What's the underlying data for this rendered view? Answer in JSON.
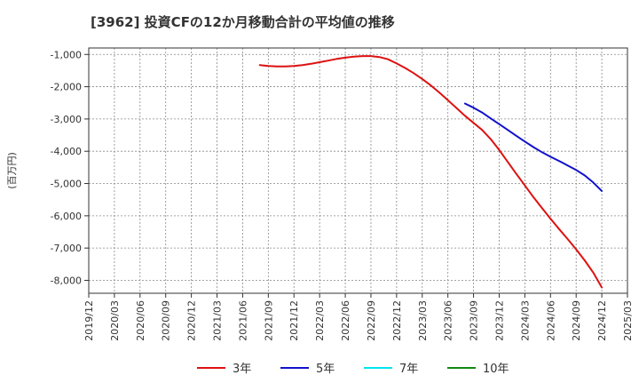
{
  "chart_data": {
    "type": "line",
    "title": "[3962]  投資CFの12か月移動合計の平均値の推移",
    "ylabel": "(百万円)",
    "xlabel": "",
    "ylim": [
      -8400,
      -800
    ],
    "y_ticks": [
      -1000,
      -2000,
      -3000,
      -4000,
      -5000,
      -6000,
      -7000,
      -8000
    ],
    "y_tick_labels": [
      "-1,000",
      "-2,000",
      "-3,000",
      "-4,000",
      "-5,000",
      "-6,000",
      "-7,000",
      "-8,000"
    ],
    "x_tick_labels": [
      "2019/12",
      "2020/03",
      "2020/06",
      "2020/09",
      "2020/12",
      "2021/03",
      "2021/06",
      "2021/09",
      "2021/12",
      "2022/03",
      "2022/06",
      "2022/09",
      "2022/12",
      "2023/03",
      "2023/06",
      "2023/09",
      "2023/12",
      "2024/03",
      "2024/06",
      "2024/09",
      "2024/12",
      "2025/03"
    ],
    "grid": true,
    "legend_position": "bottom",
    "series": [
      {
        "name": "3年",
        "color": "#dd1111",
        "x": [
          "2021/08",
          "2021/09",
          "2021/10",
          "2021/11",
          "2021/12",
          "2022/01",
          "2022/02",
          "2022/03",
          "2022/04",
          "2022/05",
          "2022/06",
          "2022/07",
          "2022/08",
          "2022/09",
          "2022/10",
          "2022/11",
          "2022/12",
          "2023/01",
          "2023/02",
          "2023/03",
          "2023/04",
          "2023/05",
          "2023/06",
          "2023/07",
          "2023/08",
          "2023/09",
          "2023/10",
          "2023/11",
          "2023/12",
          "2024/01",
          "2024/02",
          "2024/03",
          "2024/04",
          "2024/05",
          "2024/06",
          "2024/07",
          "2024/08",
          "2024/09",
          "2024/10",
          "2024/11",
          "2024/12"
        ],
        "values": [
          -1330,
          -1360,
          -1370,
          -1370,
          -1360,
          -1330,
          -1290,
          -1240,
          -1190,
          -1140,
          -1100,
          -1070,
          -1050,
          -1050,
          -1080,
          -1150,
          -1280,
          -1420,
          -1580,
          -1760,
          -1960,
          -2180,
          -2420,
          -2660,
          -2900,
          -3120,
          -3340,
          -3620,
          -3960,
          -4330,
          -4700,
          -5060,
          -5420,
          -5760,
          -6090,
          -6410,
          -6720,
          -7040,
          -7380,
          -7760,
          -8220
        ]
      },
      {
        "name": "5年",
        "color": "#1111cc",
        "x": [
          "2023/08",
          "2023/09",
          "2023/10",
          "2023/11",
          "2023/12",
          "2024/01",
          "2024/02",
          "2024/03",
          "2024/04",
          "2024/05",
          "2024/06",
          "2024/07",
          "2024/08",
          "2024/09",
          "2024/10",
          "2024/11",
          "2024/12"
        ],
        "values": [
          -2520,
          -2650,
          -2800,
          -2980,
          -3160,
          -3340,
          -3520,
          -3700,
          -3870,
          -4030,
          -4170,
          -4300,
          -4440,
          -4580,
          -4750,
          -4970,
          -5230
        ]
      },
      {
        "name": "7年",
        "color": "#00e5ee",
        "x": [],
        "values": []
      },
      {
        "name": "10年",
        "color": "#118811",
        "x": [],
        "values": []
      }
    ]
  }
}
